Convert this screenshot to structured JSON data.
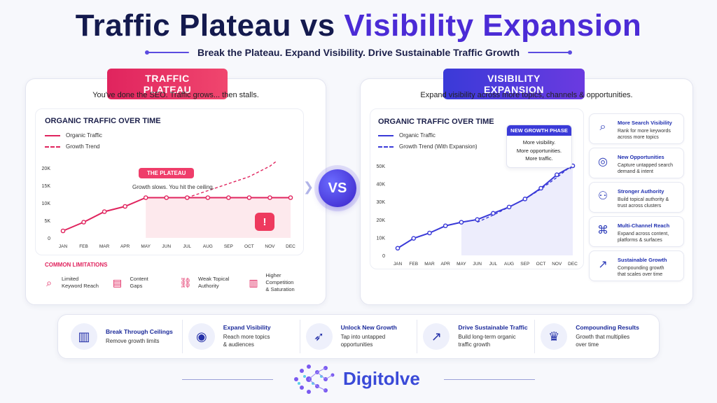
{
  "title": {
    "part1": "Traffic Plateau vs ",
    "part2": "Visibility Expansion"
  },
  "subtitle": "Break the Plateau. Expand Visibility. Drive Sustainable Traffic Growth",
  "left": {
    "badge": "TRAFFIC PLATEAU",
    "caption": "You've done the SEO. Traffic grows... then stalls.",
    "chart_title": "ORGANIC TRAFFIC OVER TIME",
    "legend": [
      "Organic Traffic",
      "Growth Trend"
    ],
    "plateau_label": "THE PLATEAU",
    "plateau_note": "Growth slows. You hit the ceiling.",
    "limitations_title": "COMMON LIMITATIONS",
    "limitations": [
      {
        "icon": "search-icon",
        "text": "Limited\nKeyword Reach"
      },
      {
        "icon": "document-icon",
        "text": "Content\nGaps"
      },
      {
        "icon": "link-icon",
        "text": "Weak Topical\nAuthority"
      },
      {
        "icon": "bar-chart-icon",
        "text": "Higher Competition\n& Saturation"
      }
    ]
  },
  "vs": "VS",
  "right": {
    "badge": "VISIBILITY EXPANSION",
    "caption": "Expand visibility across more topics, channels & opportunities.",
    "chart_title": "ORGANIC TRAFFIC OVER TIME",
    "legend": [
      "Organic Traffic",
      "Growth Trend (With Expansion)"
    ],
    "phase_label": "NEW GROWTH PHASE",
    "phase_lines": [
      "More visibility.",
      "More opportunities.",
      "More traffic."
    ],
    "cards": [
      {
        "icon": "search-icon",
        "title": "More Search Visibility",
        "desc": "Rank for more keywords\nacross more topics"
      },
      {
        "icon": "target-icon",
        "title": "New Opportunities",
        "desc": "Capture untapped search\ndemand & intent"
      },
      {
        "icon": "users-icon",
        "title": "Stronger Authority",
        "desc": "Build topical authority &\ntrust across clusters"
      },
      {
        "icon": "network-icon",
        "title": "Multi-Channel Reach",
        "desc": "Expand across content,\nplatforms & surfaces"
      },
      {
        "icon": "growth-chart-icon",
        "title": "Sustainable Growth",
        "desc": "Compounding growth\nthat scales over time"
      }
    ]
  },
  "bottom": [
    {
      "icon": "bar-chart-icon",
      "title": "Break Through Ceilings",
      "desc": "Remove growth limits"
    },
    {
      "icon": "eye-icon",
      "title": "Expand Visibility",
      "desc": "Reach more topics\n& audiences"
    },
    {
      "icon": "rocket-icon",
      "title": "Unlock New Growth",
      "desc": "Tap into untapped\nopportunities"
    },
    {
      "icon": "growth-chart-icon",
      "title": "Drive Sustainable Traffic",
      "desc": "Build long-term organic\ntraffic growth"
    },
    {
      "icon": "trophy-icon",
      "title": "Compounding Results",
      "desc": "Growth that multiplies\nover time"
    }
  ],
  "brand": "Digitolve",
  "colors": {
    "plateau": "#e0245e",
    "expansion": "#3a3ad8",
    "navy": "#141a4e"
  },
  "chart_data": [
    {
      "type": "line",
      "title": "ORGANIC TRAFFIC OVER TIME",
      "categories": [
        "JAN",
        "FEB",
        "MAR",
        "APR",
        "MAY",
        "JUN",
        "JUL",
        "AUG",
        "SEP",
        "OCT",
        "NOV",
        "DEC"
      ],
      "yticks": [
        "0",
        "5K",
        "10K",
        "15K",
        "20K"
      ],
      "ylim": [
        0,
        20000
      ],
      "series": [
        {
          "name": "Organic Traffic",
          "values": [
            2000,
            4500,
            7500,
            9000,
            11500,
            11500,
            11500,
            11500,
            11500,
            11500,
            11500,
            11500
          ]
        },
        {
          "name": "Growth Trend",
          "style": "dashed",
          "values": [
            null,
            null,
            null,
            null,
            null,
            null,
            11500,
            13500,
            15500,
            17500,
            20500,
            25000
          ]
        }
      ]
    },
    {
      "type": "line",
      "title": "ORGANIC TRAFFIC OVER TIME",
      "categories": [
        "JAN",
        "FEB",
        "MAR",
        "APR",
        "MAY",
        "JUN",
        "JUL",
        "AUG",
        "SEP",
        "OCT",
        "NOV",
        "DEC"
      ],
      "yticks": [
        "0",
        "10K",
        "20K",
        "30K",
        "40K",
        "50K"
      ],
      "ylim": [
        0,
        50000
      ],
      "series": [
        {
          "name": "Organic Traffic",
          "values": [
            4000,
            9500,
            12500,
            16500,
            18500,
            20000,
            23500,
            27000,
            31500,
            37500,
            45000,
            50000
          ]
        },
        {
          "name": "Growth Trend (With Expansion)",
          "style": "dashed",
          "values": [
            null,
            null,
            null,
            null,
            null,
            18500,
            22500,
            27000,
            31500,
            37000,
            43500,
            50500
          ]
        }
      ]
    }
  ]
}
